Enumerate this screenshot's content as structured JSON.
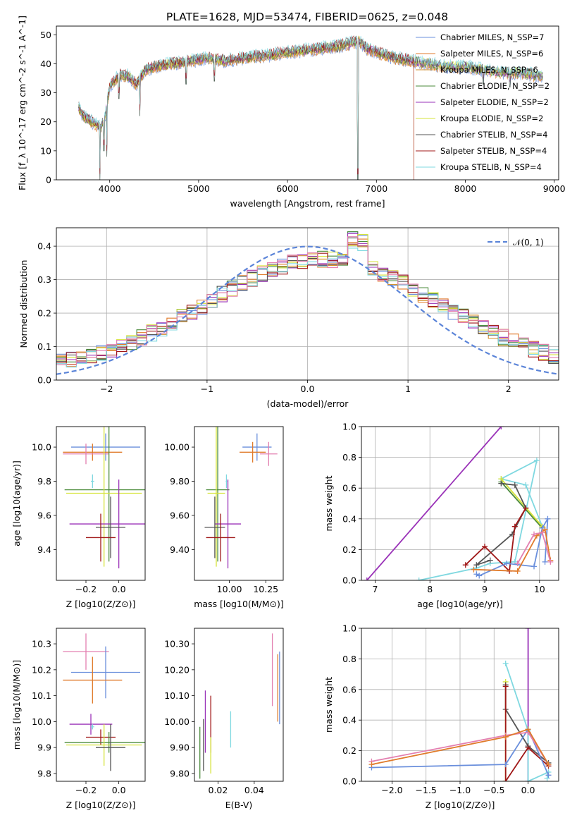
{
  "figure_title": "PLATE=1628, MJD=53474, FIBERID=0625, z=0.048",
  "colors": {
    "Chabrier MILES": "#6a8fdc",
    "Salpeter MILES": "#e07b2b",
    "Kroupa MILES": "#d4912c",
    "Chabrier ELODIE": "#4b8b3b",
    "Salpeter ELODIE": "#9a32b8",
    "Kroupa ELODIE": "#d6e33a",
    "Chabrier STELIB": "#555555",
    "Salpeter STELIB": "#a01818",
    "Kroupa STELIB": "#7fd8e0",
    "pink": "#e37fb0",
    "normal_curve": "#5b84d8"
  },
  "chart_data": [
    {
      "id": "spectrum",
      "type": "line",
      "xlabel": "wavelength [Angstrom, rest frame]",
      "ylabel": "Flux [f_λ 10^-17 erg cm^-2 s^-1 A^-1]",
      "xlim": [
        3400,
        9050
      ],
      "ylim": [
        0,
        53
      ],
      "xticks": [
        4000,
        5000,
        6000,
        7000,
        8000,
        9000
      ],
      "yticks": [
        0,
        10,
        20,
        30,
        40,
        50
      ],
      "legend_position": "upper-right",
      "legend": [
        {
          "label": "Chabrier MILES, N_SSP=7",
          "color_key": "Chabrier MILES"
        },
        {
          "label": "Salpeter MILES, N_SSP=6",
          "color_key": "Salpeter MILES"
        },
        {
          "label": "Kroupa MILES, N_SSP=6",
          "color_key": "Kroupa MILES"
        },
        {
          "label": "Chabrier ELODIE, N_SSP=2",
          "color_key": "Chabrier ELODIE"
        },
        {
          "label": "Salpeter ELODIE, N_SSP=2",
          "color_key": "Salpeter ELODIE"
        },
        {
          "label": "Kroupa ELODIE, N_SSP=2",
          "color_key": "Kroupa ELODIE"
        },
        {
          "label": "Chabrier STELIB, N_SSP=4",
          "color_key": "Chabrier STELIB"
        },
        {
          "label": "Salpeter STELIB, N_SSP=4",
          "color_key": "Salpeter STELIB"
        },
        {
          "label": "Kroupa STELIB, N_SSP=4",
          "color_key": "Kroupa STELIB"
        }
      ],
      "continuum": {
        "x": [
          3650,
          3700,
          3800,
          3900,
          3950,
          4000,
          4100,
          4200,
          4300,
          4400,
          4500,
          4700,
          4900,
          5100,
          5300,
          5500,
          5800,
          6000,
          6300,
          6560,
          6700,
          6800,
          6900,
          7000,
          7200,
          7400,
          7600,
          7800,
          8000,
          8200,
          8400,
          8600,
          8800
        ],
        "y": [
          25,
          22,
          20,
          18,
          22,
          32,
          36,
          36,
          33,
          38,
          39,
          40,
          41,
          42,
          41,
          42,
          43,
          44,
          45,
          46,
          47,
          48,
          45,
          44,
          42,
          41,
          40,
          39,
          39,
          38,
          37,
          37,
          36
        ]
      },
      "absorption_dips": [
        {
          "x": 3890,
          "y": 0
        },
        {
          "x": 3934,
          "y": 10
        },
        {
          "x": 3968,
          "y": 8
        },
        {
          "x": 4101,
          "y": 28
        },
        {
          "x": 4340,
          "y": 22
        },
        {
          "x": 4861,
          "y": 33
        },
        {
          "x": 5175,
          "y": 34
        },
        {
          "x": 6563,
          "y": 44
        },
        {
          "x": 6790,
          "y": 0
        },
        {
          "x": 8200,
          "y": 33
        },
        {
          "x": 8500,
          "y": 32
        }
      ],
      "cutoffs": [
        {
          "series": "Salpeter STELIB",
          "from_x": 7420
        },
        {
          "series": "Kroupa MILES",
          "from_x": 7420
        }
      ]
    },
    {
      "id": "residuals",
      "type": "line",
      "xlabel": "(data-model)/error",
      "ylabel": "Normed distribution",
      "xlim": [
        -2.5,
        2.5
      ],
      "ylim": [
        0,
        0.455
      ],
      "xticks": [
        -2,
        -1,
        0,
        1,
        2
      ],
      "yticks": [
        0.0,
        0.1,
        0.2,
        0.3,
        0.4
      ],
      "grid": true,
      "legend_position": "upper-right",
      "normal_curve_label": "𝒩(0, 1)",
      "bin_width": 0.1,
      "hist_bins": [
        -2.5,
        -2.4,
        -2.3,
        -2.2,
        -2.1,
        -2.0,
        -1.9,
        -1.8,
        -1.7,
        -1.6,
        -1.5,
        -1.4,
        -1.3,
        -1.2,
        -1.1,
        -1.0,
        -0.9,
        -0.8,
        -0.7,
        -0.6,
        -0.5,
        -0.4,
        -0.3,
        -0.2,
        -0.1,
        0.0,
        0.1,
        0.2,
        0.3,
        0.4,
        0.5,
        0.6,
        0.7,
        0.8,
        0.9,
        1.0,
        1.1,
        1.2,
        1.3,
        1.4,
        1.5,
        1.6,
        1.7,
        1.8,
        1.9,
        2.0,
        2.1,
        2.2,
        2.3,
        2.4
      ]
    },
    {
      "id": "age_vs_Z",
      "type": "scatter",
      "xlabel": "Z [log10(Z/Z⊙)]",
      "ylabel": "age [log10(age/yr)]",
      "xlim": [
        -0.38,
        0.16
      ],
      "ylim": [
        9.22,
        10.12
      ],
      "xticks": [
        -0.2,
        0.0
      ],
      "yticks": [
        9.4,
        9.6,
        9.8,
        10.0
      ],
      "points": [
        {
          "color_key": "Chabrier MILES",
          "x": -0.08,
          "y": 10.0,
          "xerr": 0.21,
          "yerr": 0.08
        },
        {
          "color_key": "Salpeter MILES",
          "x": -0.16,
          "y": 9.97,
          "xerr": 0.18,
          "yerr": 0.05
        },
        {
          "color_key": "pink",
          "x": -0.2,
          "y": 9.96,
          "xerr": 0.14,
          "yerr": 0.06
        },
        {
          "color_key": "Kroupa STELIB",
          "x": -0.16,
          "y": 9.8,
          "xerr": 0.01,
          "yerr": 0.04
        },
        {
          "color_key": "Chabrier ELODIE",
          "x": -0.06,
          "y": 9.75,
          "xerr": 0.27,
          "yerr": 0.42
        },
        {
          "color_key": "Kroupa ELODIE",
          "x": -0.09,
          "y": 9.73,
          "xerr": 0.23,
          "yerr": 0.43
        },
        {
          "color_key": "Salpeter ELODIE",
          "x": 0.0,
          "y": 9.55,
          "xerr": 0.3,
          "yerr": 0.26
        },
        {
          "color_key": "Chabrier STELIB",
          "x": -0.05,
          "y": 9.53,
          "xerr": 0.09,
          "yerr": 0.18
        },
        {
          "color_key": "Salpeter STELIB",
          "x": -0.11,
          "y": 9.47,
          "xerr": 0.09,
          "yerr": 0.14
        }
      ]
    },
    {
      "id": "age_vs_mass",
      "type": "scatter",
      "xlabel": "mass [log10(M/M⊙)]",
      "ylabel": "",
      "xlim": [
        9.76,
        10.37
      ],
      "ylim": [
        9.22,
        10.12
      ],
      "xticks": [
        10.0,
        10.25
      ],
      "yticks": [
        9.4,
        9.6,
        9.8,
        10.0
      ],
      "points": [
        {
          "color_key": "Chabrier MILES",
          "x": 10.19,
          "y": 10.0,
          "xerr": 0.1,
          "yerr": 0.08
        },
        {
          "color_key": "Salpeter MILES",
          "x": 10.16,
          "y": 9.97,
          "xerr": 0.09,
          "yerr": 0.06
        },
        {
          "color_key": "pink",
          "x": 10.27,
          "y": 9.96,
          "xerr": 0.06,
          "yerr": 0.07
        },
        {
          "color_key": "Kroupa STELIB",
          "x": 9.98,
          "y": 9.8,
          "xerr": 0.005,
          "yerr": 0.04
        },
        {
          "color_key": "Chabrier ELODIE",
          "x": 9.92,
          "y": 9.75,
          "xerr": 0.08,
          "yerr": 0.42
        },
        {
          "color_key": "Kroupa ELODIE",
          "x": 9.91,
          "y": 9.73,
          "xerr": 0.06,
          "yerr": 0.43
        },
        {
          "color_key": "Salpeter ELODIE",
          "x": 9.99,
          "y": 9.55,
          "xerr": 0.09,
          "yerr": 0.26
        },
        {
          "color_key": "Chabrier STELIB",
          "x": 9.9,
          "y": 9.53,
          "xerr": 0.07,
          "yerr": 0.18
        },
        {
          "color_key": "Salpeter STELIB",
          "x": 9.94,
          "y": 9.47,
          "xerr": 0.1,
          "yerr": 0.14
        }
      ]
    },
    {
      "id": "weight_vs_age",
      "type": "line",
      "xlabel": "age [log10(age/yr)]",
      "ylabel": "mass weight",
      "xlim": [
        6.75,
        10.35
      ],
      "ylim": [
        0,
        1.0
      ],
      "xticks": [
        7,
        8,
        9,
        10
      ],
      "yticks": [
        0.0,
        0.2,
        0.4,
        0.6,
        0.8,
        1.0
      ],
      "grid": true,
      "series": [
        {
          "color_key": "Salpeter ELODIE",
          "x": [
            6.85,
            9.3
          ],
          "y": [
            0.0,
            1.0
          ]
        },
        {
          "color_key": "Kroupa STELIB",
          "x": [
            7.8,
            8.85,
            9.1,
            9.55,
            9.95,
            9.3,
            9.75,
            10.05
          ],
          "y": [
            0.0,
            0.08,
            0.11,
            0.12,
            0.78,
            0.66,
            0.62,
            0.35
          ]
        },
        {
          "color_key": "Chabrier ELODIE",
          "x": [
            9.3,
            10.05
          ],
          "y": [
            0.64,
            0.34
          ]
        },
        {
          "color_key": "Kroupa ELODIE",
          "x": [
            9.3,
            10.05
          ],
          "y": [
            0.66,
            0.35
          ]
        },
        {
          "color_key": "Chabrier STELIB",
          "x": [
            9.3,
            9.55,
            9.75,
            9.5,
            8.85,
            9.1
          ],
          "y": [
            0.63,
            0.62,
            0.47,
            0.3,
            0.1,
            0.13
          ]
        },
        {
          "color_key": "Salpeter STELIB",
          "x": [
            8.65,
            9.0,
            9.45,
            9.55,
            9.75
          ],
          "y": [
            0.1,
            0.22,
            0.06,
            0.35,
            0.47
          ]
        },
        {
          "color_key": "Chabrier MILES",
          "x": [
            8.85,
            8.9,
            9.4,
            9.9,
            10.05,
            10.15,
            10.1
          ],
          "y": [
            0.04,
            0.03,
            0.11,
            0.09,
            0.34,
            0.4,
            0.12
          ]
        },
        {
          "color_key": "Salpeter MILES",
          "x": [
            8.8,
            9.6,
            9.95,
            10.1,
            10.2
          ],
          "y": [
            0.07,
            0.06,
            0.29,
            0.33,
            0.13
          ]
        },
        {
          "color_key": "pink",
          "x": [
            9.6,
            9.9,
            10.05,
            10.2
          ],
          "y": [
            0.11,
            0.3,
            0.31,
            0.12
          ]
        }
      ]
    },
    {
      "id": "mass_vs_Z",
      "type": "scatter",
      "xlabel": "Z [log10(Z/Z⊙)]",
      "ylabel": "mass [log10(M/M⊙)]",
      "xlim": [
        -0.38,
        0.16
      ],
      "ylim": [
        9.77,
        10.36
      ],
      "xticks": [
        -0.2,
        0.0
      ],
      "yticks": [
        9.8,
        9.9,
        10.0,
        10.1,
        10.2,
        10.3
      ],
      "points": [
        {
          "color_key": "pink",
          "x": -0.2,
          "y": 10.27,
          "xerr": 0.14,
          "yerr": 0.07
        },
        {
          "color_key": "Chabrier MILES",
          "x": -0.08,
          "y": 10.19,
          "xerr": 0.21,
          "yerr": 0.1
        },
        {
          "color_key": "Salpeter MILES",
          "x": -0.16,
          "y": 10.16,
          "xerr": 0.18,
          "yerr": 0.09
        },
        {
          "color_key": "Salpeter ELODIE",
          "x": -0.17,
          "y": 9.99,
          "xerr": 0.13,
          "yerr": 0.04
        },
        {
          "color_key": "Kroupa STELIB",
          "x": -0.16,
          "y": 9.98,
          "xerr": 0.01,
          "yerr": 0.01
        },
        {
          "color_key": "Salpeter STELIB",
          "x": -0.11,
          "y": 9.94,
          "xerr": 0.09,
          "yerr": 0.03
        },
        {
          "color_key": "Chabrier ELODIE",
          "x": -0.06,
          "y": 9.92,
          "xerr": 0.27,
          "yerr": 0.04
        },
        {
          "color_key": "Kroupa ELODIE",
          "x": -0.09,
          "y": 9.91,
          "xerr": 0.23,
          "yerr": 0.08
        },
        {
          "color_key": "Chabrier STELIB",
          "x": -0.05,
          "y": 9.9,
          "xerr": 0.09,
          "yerr": 0.09
        }
      ]
    },
    {
      "id": "mass_vs_ebv",
      "type": "scatter",
      "xlabel": "E(B-V)",
      "ylabel": "",
      "xlim": [
        0.007,
        0.056
      ],
      "ylim": [
        9.77,
        10.36
      ],
      "xticks": [
        0.02,
        0.04
      ],
      "yticks": [
        9.8,
        9.9,
        10.0,
        10.1,
        10.2,
        10.3
      ],
      "points": [
        {
          "color_key": "Chabrier ELODIE",
          "x": 0.01,
          "y": 9.88,
          "yerr": 0.1
        },
        {
          "color_key": "Salpeter ELODIE",
          "x": 0.013,
          "y": 10.0,
          "yerr": 0.12
        },
        {
          "color_key": "Chabrier STELIB",
          "x": 0.012,
          "y": 9.91,
          "yerr": 0.1
        },
        {
          "color_key": "Salpeter STELIB",
          "x": 0.016,
          "y": 9.99,
          "yerr": 0.11
        },
        {
          "color_key": "Kroupa ELODIE",
          "x": 0.016,
          "y": 9.87,
          "yerr": 0.07
        },
        {
          "color_key": "Kroupa STELIB",
          "x": 0.027,
          "y": 9.97,
          "yerr": 0.07
        },
        {
          "color_key": "pink",
          "x": 0.05,
          "y": 10.2,
          "yerr": 0.14
        },
        {
          "color_key": "Salpeter MILES",
          "x": 0.053,
          "y": 10.13,
          "yerr": 0.13
        },
        {
          "color_key": "Chabrier MILES",
          "x": 0.054,
          "y": 10.13,
          "yerr": 0.14
        }
      ]
    },
    {
      "id": "weight_vs_Z",
      "type": "line",
      "xlabel": "Z [log10(Z/Z⊙)]",
      "ylabel": "mass weight",
      "xlim": [
        -2.45,
        0.45
      ],
      "ylim": [
        0,
        1.0
      ],
      "xticks": [
        -2.0,
        -1.5,
        -1.0,
        -0.5,
        0.0
      ],
      "yticks": [
        0.0,
        0.2,
        0.4,
        0.6,
        0.8,
        1.0
      ],
      "grid": true,
      "series": [
        {
          "color_key": "Salpeter ELODIE",
          "x": [
            0.0,
            0.0
          ],
          "y": [
            0.0,
            1.0
          ]
        },
        {
          "color_key": "Kroupa STELIB",
          "x": [
            -0.33,
            0.0,
            0.0,
            0.3,
            0.28
          ],
          "y": [
            0.77,
            0.33,
            0.0,
            0.06,
            0.02
          ]
        },
        {
          "color_key": "Kroupa ELODIE",
          "x": [
            -0.33,
            -0.33
          ],
          "y": [
            0.65,
            0.0
          ]
        },
        {
          "color_key": "Chabrier STELIB",
          "x": [
            -0.33,
            -0.33,
            0.0,
            0.3
          ],
          "y": [
            0.63,
            0.47,
            0.23,
            0.12
          ]
        },
        {
          "color_key": "Salpeter STELIB",
          "x": [
            -0.33,
            -0.33,
            0.0,
            0.3
          ],
          "y": [
            0.62,
            0.0,
            0.22,
            0.1
          ]
        },
        {
          "color_key": "Chabrier MILES",
          "x": [
            -2.3,
            -0.33,
            0.0,
            0.3
          ],
          "y": [
            0.09,
            0.11,
            0.34,
            0.04
          ]
        },
        {
          "color_key": "pink",
          "x": [
            -2.3,
            -0.33,
            0.0,
            0.3
          ],
          "y": [
            0.13,
            0.3,
            0.32,
            0.11
          ]
        },
        {
          "color_key": "Salpeter MILES",
          "x": [
            -2.3,
            -0.33,
            0.0,
            0.3
          ],
          "y": [
            0.11,
            0.29,
            0.34,
            0.11
          ]
        }
      ]
    }
  ]
}
